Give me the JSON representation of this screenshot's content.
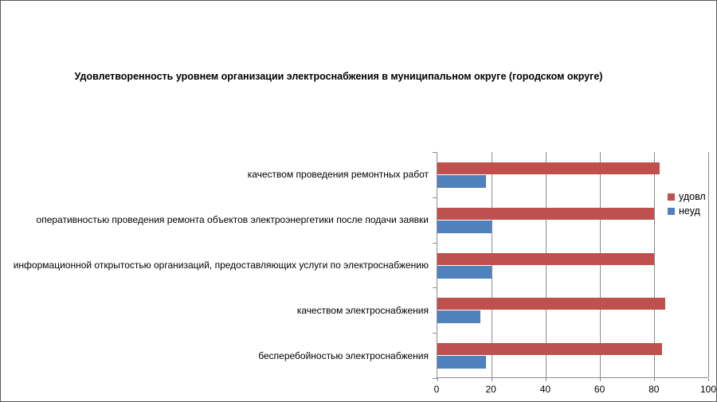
{
  "chart_data": {
    "type": "bar",
    "orientation": "horizontal",
    "title": "Удовлетворенность уровнем организации электроснабжения в муниципальном округе (городском округе)",
    "categories": [
      "качеством проведения ремонтных работ",
      "оперативностью проведения ремонта объектов электроэнергетики после подачи заявки",
      "информационной открытостью организаций, предоставляющих услуги по электроснабжению",
      "качеством электроснабжения",
      "бесперебойностью электроснабжения"
    ],
    "series": [
      {
        "name": "удовл",
        "color": "#C0504D",
        "values": [
          82,
          80,
          80,
          84,
          83
        ]
      },
      {
        "name": "неуд",
        "color": "#4F81BD",
        "values": [
          18,
          20,
          20,
          16,
          18
        ]
      }
    ],
    "xlim": [
      0,
      100
    ],
    "xticks": [
      0,
      20,
      40,
      60,
      80,
      100
    ],
    "grid": "vertical-only",
    "legend_position": "right"
  },
  "colors": {
    "background": "#FFFFFF",
    "grid": "#8C8C8C",
    "axis": "#8C8C8C",
    "frame_border": "#595959",
    "text": "#000000"
  }
}
